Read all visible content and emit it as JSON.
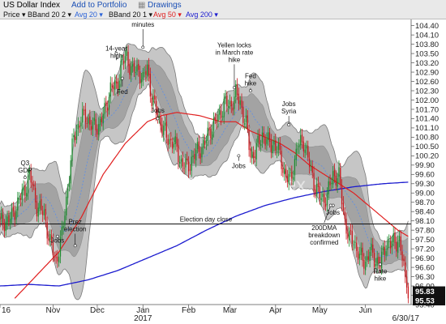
{
  "toolbar": {
    "title": "US Dollar Index",
    "add_portfolio": "Add to Portfolio",
    "drawings": "Drawings",
    "legend": [
      {
        "label": "Price",
        "color": "#111111"
      },
      {
        "label": "BBand 20 2",
        "color": "#111111"
      },
      {
        "label": "Avg 20",
        "color": "#2b63d9"
      },
      {
        "label": "BBand 20 1",
        "color": "#111111"
      },
      {
        "label": "Avg 50",
        "color": "#e01f1f"
      },
      {
        "label": "Avg 200",
        "color": "#1c1ccf"
      }
    ]
  },
  "chart_data": {
    "type": "candlestick",
    "watermark": "US Dollar Index",
    "ylim": [
      95.4,
      104.6
    ],
    "y_ticks": [
      95.4,
      95.7,
      96.0,
      96.3,
      96.6,
      96.9,
      97.2,
      97.5,
      97.8,
      98.1,
      98.4,
      98.7,
      99.0,
      99.3,
      99.6,
      99.9,
      100.2,
      100.5,
      100.8,
      101.1,
      101.4,
      101.7,
      102.0,
      102.3,
      102.6,
      102.9,
      103.2,
      103.5,
      103.8,
      104.1,
      104.4
    ],
    "x_labels": [
      {
        "label": "16",
        "day": 0
      },
      {
        "label": "Nov",
        "day": 36
      },
      {
        "label": "Dec",
        "day": 66
      },
      {
        "label": "Jan",
        "day": 97
      },
      {
        "label": "2017",
        "day": 97,
        "row": 2
      },
      {
        "label": "Feb",
        "day": 128
      },
      {
        "label": "Mar",
        "day": 156
      },
      {
        "label": "Apr",
        "day": 187
      },
      {
        "label": "May",
        "day": 217
      },
      {
        "label": "Jun",
        "day": 248
      },
      {
        "label": "6/30/17",
        "day": 277,
        "row": 2
      }
    ],
    "price_labels": [
      {
        "value": 95.83,
        "text": "95.83"
      },
      {
        "value": 95.53,
        "text": "95.53"
      }
    ],
    "price_anchors": [
      [
        0,
        98.0
      ],
      [
        8,
        98.2
      ],
      [
        12,
        98.7
      ],
      [
        16,
        99.0
      ],
      [
        20,
        99.6
      ],
      [
        25,
        98.6
      ],
      [
        30,
        98.3
      ],
      [
        34,
        97.4
      ],
      [
        38,
        96.8
      ],
      [
        42,
        97.6
      ],
      [
        46,
        99.2
      ],
      [
        50,
        100.8
      ],
      [
        54,
        101.3
      ],
      [
        58,
        101.5
      ],
      [
        63,
        101.1
      ],
      [
        67,
        101.2
      ],
      [
        71,
        101.6
      ],
      [
        75,
        102.4
      ],
      [
        79,
        102.4
      ],
      [
        82,
        103.1
      ],
      [
        86,
        103.4
      ],
      [
        90,
        102.9
      ],
      [
        94,
        103.0
      ],
      [
        97,
        102.6
      ],
      [
        100,
        103.1
      ],
      [
        103,
        102.0
      ],
      [
        108,
        101.4
      ],
      [
        113,
        100.8
      ],
      [
        118,
        100.6
      ],
      [
        123,
        100.0
      ],
      [
        127,
        99.8
      ],
      [
        130,
        100.1
      ],
      [
        135,
        100.4
      ],
      [
        139,
        100.6
      ],
      [
        143,
        101.1
      ],
      [
        148,
        101.4
      ],
      [
        152,
        101.9
      ],
      [
        156,
        101.8
      ],
      [
        160,
        102.2
      ],
      [
        163,
        101.9
      ],
      [
        167,
        101.2
      ],
      [
        170,
        100.2
      ],
      [
        174,
        100.4
      ],
      [
        178,
        100.9
      ],
      [
        182,
        100.6
      ],
      [
        186,
        100.6
      ],
      [
        190,
        100.2
      ],
      [
        194,
        99.5
      ],
      [
        197,
        99.4
      ],
      [
        202,
        100.5
      ],
      [
        206,
        100.7
      ],
      [
        210,
        99.9
      ],
      [
        214,
        99.2
      ],
      [
        218,
        98.8
      ],
      [
        222,
        98.9
      ],
      [
        226,
        99.6
      ],
      [
        230,
        99.5
      ],
      [
        234,
        98.1
      ],
      [
        237,
        97.5
      ],
      [
        240,
        97.5
      ],
      [
        244,
        96.9
      ],
      [
        248,
        96.8
      ],
      [
        251,
        97.1
      ],
      [
        254,
        96.9
      ],
      [
        258,
        96.7
      ],
      [
        262,
        97.4
      ],
      [
        265,
        97.3
      ],
      [
        268,
        97.5
      ],
      [
        271,
        97.4
      ],
      [
        274,
        96.6
      ],
      [
        276,
        95.9
      ],
      [
        277,
        95.6
      ]
    ],
    "sma50_anchors": [
      [
        10,
        95.6
      ],
      [
        30,
        96.6
      ],
      [
        40,
        97.1
      ],
      [
        55,
        98.2
      ],
      [
        70,
        99.6
      ],
      [
        85,
        100.6
      ],
      [
        100,
        101.3
      ],
      [
        110,
        101.5
      ],
      [
        120,
        101.6
      ],
      [
        135,
        101.5
      ],
      [
        150,
        101.3
      ],
      [
        160,
        101.3
      ],
      [
        170,
        101.0
      ],
      [
        180,
        100.8
      ],
      [
        190,
        100.6
      ],
      [
        200,
        100.3
      ],
      [
        210,
        99.9
      ],
      [
        220,
        99.6
      ],
      [
        230,
        99.3
      ],
      [
        240,
        99.0
      ],
      [
        250,
        98.6
      ],
      [
        260,
        98.2
      ],
      [
        270,
        97.8
      ],
      [
        277,
        97.6
      ]
    ],
    "sma200_anchors": [
      [
        0,
        96.0
      ],
      [
        20,
        96.05
      ],
      [
        40,
        96.0
      ],
      [
        60,
        96.2
      ],
      [
        80,
        96.5
      ],
      [
        100,
        96.9
      ],
      [
        120,
        97.3
      ],
      [
        140,
        97.8
      ],
      [
        160,
        98.25
      ],
      [
        180,
        98.6
      ],
      [
        200,
        98.85
      ],
      [
        220,
        99.05
      ],
      [
        240,
        99.2
      ],
      [
        260,
        99.3
      ],
      [
        277,
        99.35
      ]
    ],
    "election_line": {
      "value": 98.0,
      "label": "Election day close"
    },
    "annotations": [
      {
        "text": [
          "Q3",
          "GDP"
        ],
        "day": 17,
        "value": 99.9,
        "target": 99.5
      },
      {
        "text": [
          "Jobs"
        ],
        "day": 39,
        "value": 97.4,
        "target": 97.6
      },
      {
        "text": [
          "Prez",
          "election"
        ],
        "day": 51,
        "value": 98.0,
        "target": 97.3
      },
      {
        "text": [
          "14-year",
          "high"
        ],
        "day": 79,
        "value": 103.6,
        "target": 103.5
      },
      {
        "text": [
          "Fed"
        ],
        "day": 83,
        "value": 102.2,
        "target": 102.7
      },
      {
        "text": [
          "Fed",
          "minutes"
        ],
        "day": 97,
        "value": 104.6,
        "target": 103.7
      },
      {
        "text": [
          "Jobs"
        ],
        "day": 107,
        "value": 101.6,
        "target": 101.4
      },
      {
        "text": [
          "Yellen locks",
          "in March rate",
          "hike"
        ],
        "day": 159,
        "value": 103.7,
        "target": 102.4
      },
      {
        "text": [
          "Fed",
          "hike"
        ],
        "day": 170,
        "value": 102.7,
        "target": 102.3
      },
      {
        "text": [
          "Jobs"
        ],
        "day": 162,
        "value": 99.8,
        "target": 100.2
      },
      {
        "text": [
          "Jobs",
          "Syria"
        ],
        "day": 196,
        "value": 101.8,
        "target": 101.2
      },
      {
        "text": [
          "Jobs"
        ],
        "day": 226,
        "value": 98.3,
        "target": 98.6
      },
      {
        "text": [
          "200DMA",
          "breakdown",
          "confirmed"
        ],
        "day": 220,
        "value": 97.8,
        "target": 98.6
      },
      {
        "text": [
          "Rate",
          "hike"
        ],
        "day": 258,
        "value": 96.4,
        "target": 96.7
      }
    ]
  }
}
